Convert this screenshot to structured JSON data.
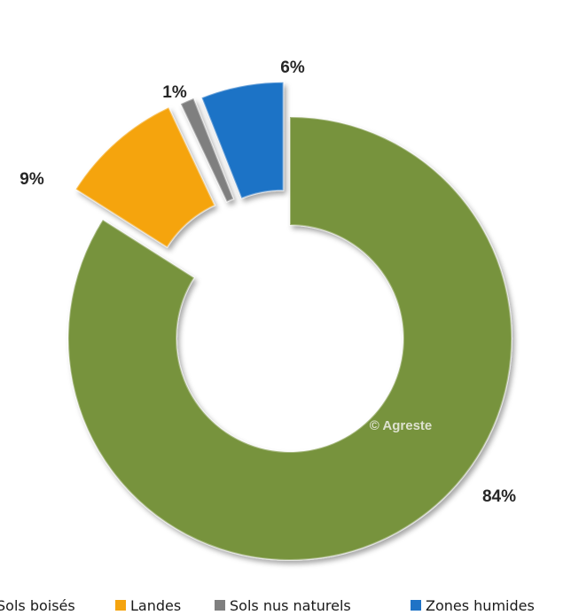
{
  "chart_data": {
    "type": "pie",
    "variant": "exploded-donut",
    "categories": [
      "Sols boisés",
      "Landes",
      "Sols nus naturels",
      "Zones humides"
    ],
    "values": [
      84,
      9,
      1,
      6
    ],
    "data_labels": [
      "84%",
      "9%",
      "1%",
      "6%"
    ],
    "colors": [
      "#77933c",
      "#f5a40f",
      "#7f7f7f",
      "#1f73c6"
    ],
    "legend_position": "bottom",
    "watermark": "© Agreste"
  }
}
